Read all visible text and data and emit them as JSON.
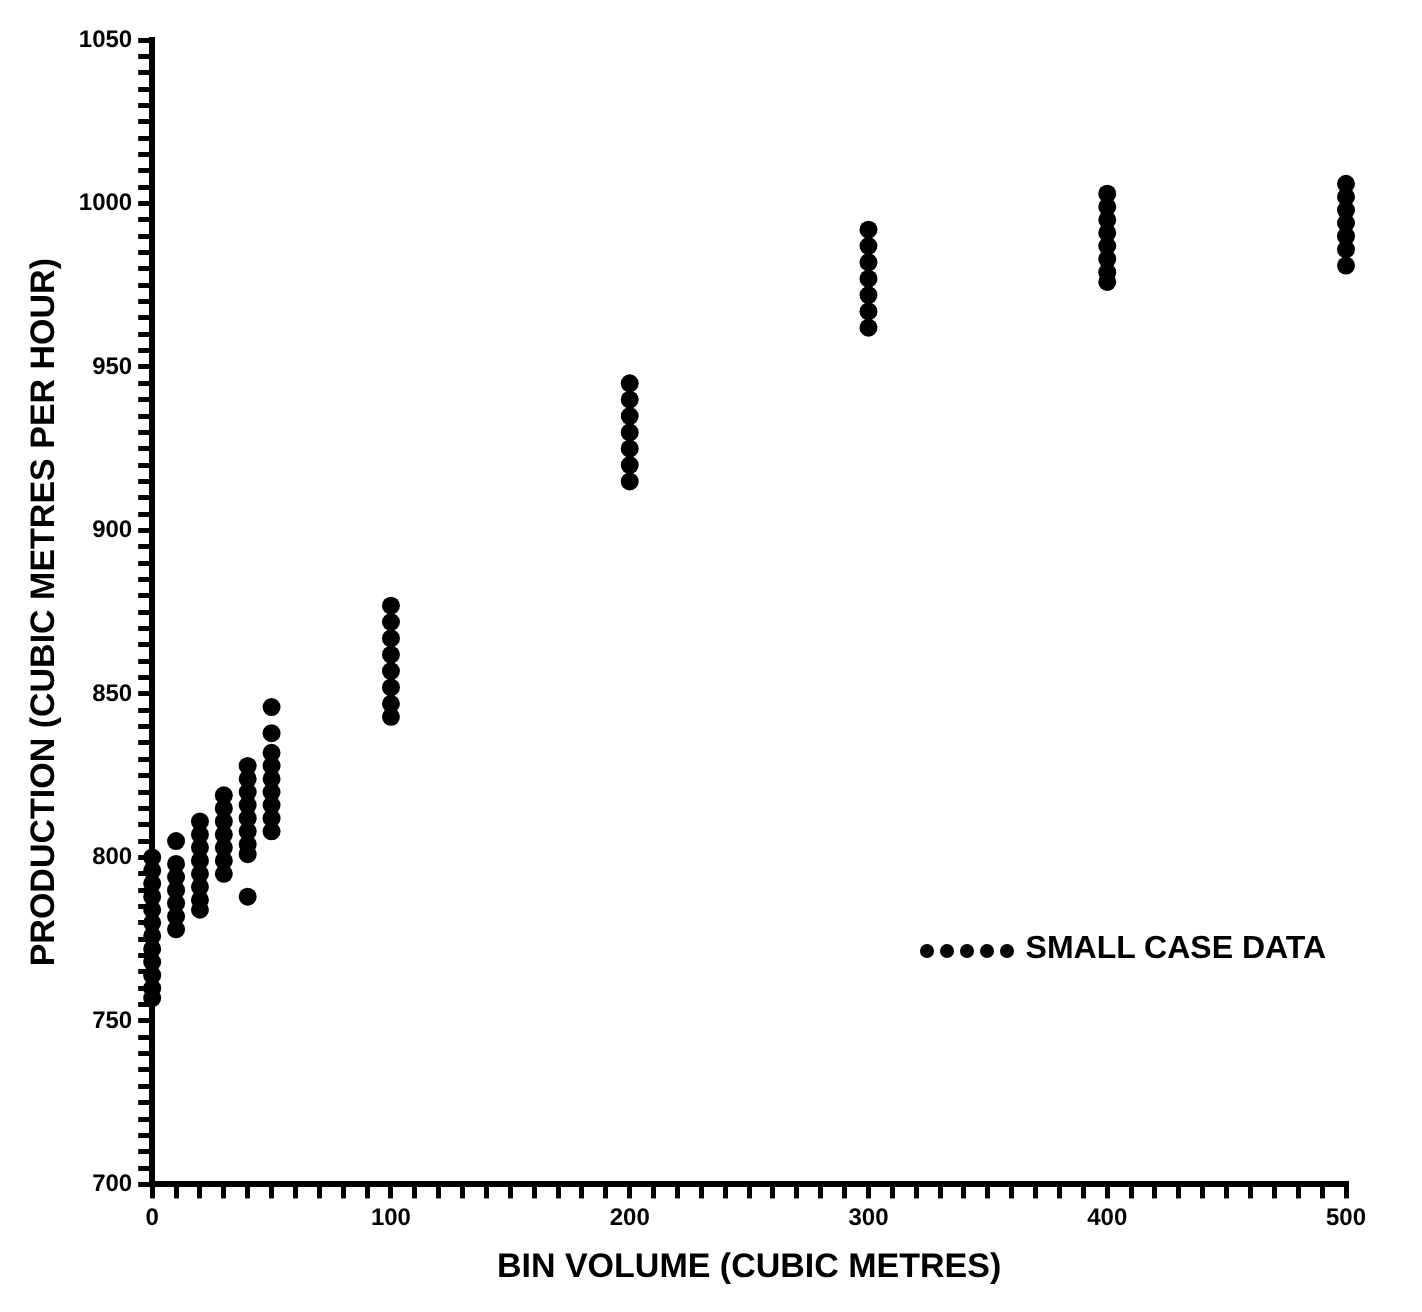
{
  "chart_data": {
    "type": "scatter",
    "xlabel": "BIN VOLUME (CUBIC METRES)",
    "ylabel": "PRODUCTION (CUBIC METRES PER HOUR)",
    "xlim": [
      0,
      500
    ],
    "ylim": [
      700,
      1050
    ],
    "xticks": [
      0,
      {
        "value": 10,
        "label": null
      },
      {
        "value": 20,
        "label": null
      },
      {
        "value": 30,
        "label": null
      },
      {
        "value": 40,
        "label": null
      },
      {
        "value": 50,
        "label": null
      },
      {
        "value": 60,
        "label": null
      },
      {
        "value": 70,
        "label": null
      },
      {
        "value": 80,
        "label": null
      },
      {
        "value": 90,
        "label": null
      },
      100,
      {
        "value": 110,
        "label": null
      },
      {
        "value": 120,
        "label": null
      },
      {
        "value": 130,
        "label": null
      },
      {
        "value": 140,
        "label": null
      },
      {
        "value": 150,
        "label": null
      },
      {
        "value": 160,
        "label": null
      },
      {
        "value": 170,
        "label": null
      },
      {
        "value": 180,
        "label": null
      },
      {
        "value": 190,
        "label": null
      },
      200,
      {
        "value": 210,
        "label": null
      },
      {
        "value": 220,
        "label": null
      },
      {
        "value": 230,
        "label": null
      },
      {
        "value": 240,
        "label": null
      },
      {
        "value": 250,
        "label": null
      },
      {
        "value": 260,
        "label": null
      },
      {
        "value": 270,
        "label": null
      },
      {
        "value": 280,
        "label": null
      },
      {
        "value": 290,
        "label": null
      },
      300,
      {
        "value": 310,
        "label": null
      },
      {
        "value": 320,
        "label": null
      },
      {
        "value": 330,
        "label": null
      },
      {
        "value": 340,
        "label": null
      },
      {
        "value": 350,
        "label": null
      },
      {
        "value": 360,
        "label": null
      },
      {
        "value": 370,
        "label": null
      },
      {
        "value": 380,
        "label": null
      },
      {
        "value": 390,
        "label": null
      },
      400,
      {
        "value": 410,
        "label": null
      },
      {
        "value": 420,
        "label": null
      },
      {
        "value": 430,
        "label": null
      },
      {
        "value": 440,
        "label": null
      },
      {
        "value": 450,
        "label": null
      },
      {
        "value": 460,
        "label": null
      },
      {
        "value": 470,
        "label": null
      },
      {
        "value": 480,
        "label": null
      },
      {
        "value": 490,
        "label": null
      },
      500
    ],
    "yticks": [
      700,
      {
        "value": 705,
        "label": null
      },
      {
        "value": 710,
        "label": null
      },
      {
        "value": 715,
        "label": null
      },
      {
        "value": 720,
        "label": null
      },
      {
        "value": 725,
        "label": null
      },
      {
        "value": 730,
        "label": null
      },
      {
        "value": 735,
        "label": null
      },
      {
        "value": 740,
        "label": null
      },
      {
        "value": 745,
        "label": null
      },
      750,
      {
        "value": 755,
        "label": null
      },
      {
        "value": 760,
        "label": null
      },
      {
        "value": 765,
        "label": null
      },
      {
        "value": 770,
        "label": null
      },
      {
        "value": 775,
        "label": null
      },
      {
        "value": 780,
        "label": null
      },
      {
        "value": 785,
        "label": null
      },
      {
        "value": 790,
        "label": null
      },
      {
        "value": 795,
        "label": null
      },
      800,
      {
        "value": 805,
        "label": null
      },
      {
        "value": 810,
        "label": null
      },
      {
        "value": 815,
        "label": null
      },
      {
        "value": 820,
        "label": null
      },
      {
        "value": 825,
        "label": null
      },
      {
        "value": 830,
        "label": null
      },
      {
        "value": 835,
        "label": null
      },
      {
        "value": 840,
        "label": null
      },
      {
        "value": 845,
        "label": null
      },
      850,
      {
        "value": 855,
        "label": null
      },
      {
        "value": 860,
        "label": null
      },
      {
        "value": 865,
        "label": null
      },
      {
        "value": 870,
        "label": null
      },
      {
        "value": 875,
        "label": null
      },
      {
        "value": 880,
        "label": null
      },
      {
        "value": 885,
        "label": null
      },
      {
        "value": 890,
        "label": null
      },
      {
        "value": 895,
        "label": null
      },
      900,
      {
        "value": 905,
        "label": null
      },
      {
        "value": 910,
        "label": null
      },
      {
        "value": 915,
        "label": null
      },
      {
        "value": 920,
        "label": null
      },
      {
        "value": 925,
        "label": null
      },
      {
        "value": 930,
        "label": null
      },
      {
        "value": 935,
        "label": null
      },
      {
        "value": 940,
        "label": null
      },
      {
        "value": 945,
        "label": null
      },
      950,
      {
        "value": 955,
        "label": null
      },
      {
        "value": 960,
        "label": null
      },
      {
        "value": 965,
        "label": null
      },
      {
        "value": 970,
        "label": null
      },
      {
        "value": 975,
        "label": null
      },
      {
        "value": 980,
        "label": null
      },
      {
        "value": 985,
        "label": null
      },
      {
        "value": 990,
        "label": null
      },
      {
        "value": 995,
        "label": null
      },
      1000,
      {
        "value": 1005,
        "label": null
      },
      {
        "value": 1010,
        "label": null
      },
      {
        "value": 1015,
        "label": null
      },
      {
        "value": 1020,
        "label": null
      },
      {
        "value": 1025,
        "label": null
      },
      {
        "value": 1030,
        "label": null
      },
      {
        "value": 1035,
        "label": null
      },
      {
        "value": 1040,
        "label": null
      },
      {
        "value": 1045,
        "label": null
      },
      1050
    ],
    "grid": false,
    "legend": "right",
    "marker": "circle",
    "series": [
      {
        "name": "SMALL CASE DATA",
        "color": "#000000",
        "x": [
          0,
          0,
          0,
          0,
          0,
          0,
          0,
          0,
          0,
          0,
          0,
          0,
          10,
          10,
          10,
          10,
          10,
          10,
          10,
          20,
          20,
          20,
          20,
          20,
          20,
          20,
          20,
          30,
          30,
          30,
          30,
          30,
          30,
          30,
          40,
          40,
          40,
          40,
          40,
          40,
          40,
          40,
          40,
          50,
          50,
          50,
          50,
          50,
          50,
          50,
          50,
          50,
          100,
          100,
          100,
          100,
          100,
          100,
          100,
          100,
          200,
          200,
          200,
          200,
          200,
          200,
          200,
          300,
          300,
          300,
          300,
          300,
          300,
          300,
          400,
          400,
          400,
          400,
          400,
          400,
          400,
          400,
          500,
          500,
          500,
          500,
          500,
          500,
          500
        ],
        "values": [
          800,
          796,
          792,
          788,
          784,
          780,
          776,
          772,
          768,
          764,
          760,
          757,
          805,
          798,
          794,
          790,
          786,
          782,
          778,
          811,
          807,
          803,
          799,
          795,
          791,
          787,
          784,
          819,
          815,
          811,
          807,
          803,
          799,
          795,
          828,
          824,
          820,
          816,
          812,
          808,
          804,
          801,
          788,
          846,
          838,
          832,
          828,
          824,
          820,
          816,
          812,
          808,
          877,
          872,
          867,
          862,
          857,
          852,
          847,
          843,
          945,
          940,
          935,
          930,
          925,
          920,
          915,
          992,
          987,
          982,
          977,
          972,
          967,
          962,
          1003,
          999,
          995,
          991,
          987,
          983,
          979,
          976,
          1006,
          1002,
          998,
          994,
          990,
          986,
          981
        ]
      }
    ]
  }
}
